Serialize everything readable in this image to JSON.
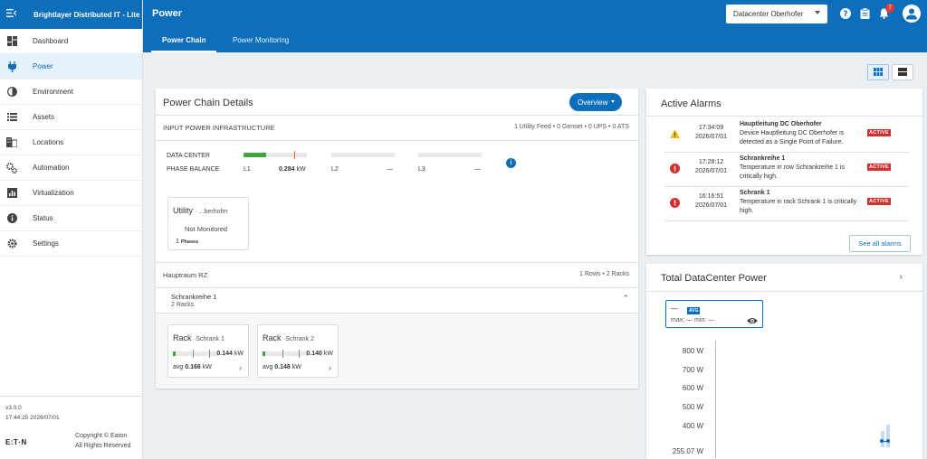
{
  "app": {
    "title": "Brightlayer Distributed IT - Lite"
  },
  "nav": [
    {
      "label": "Dashboard",
      "icon": "dashboard-icon"
    },
    {
      "label": "Power",
      "icon": "power-plug-icon",
      "active": true
    },
    {
      "label": "Environment",
      "icon": "environment-icon"
    },
    {
      "label": "Assets",
      "icon": "assets-list-icon"
    },
    {
      "label": "Locations",
      "icon": "building-icon"
    },
    {
      "label": "Automation",
      "icon": "automation-gears-icon"
    },
    {
      "label": "Virtualization",
      "icon": "chart-icon"
    },
    {
      "label": "Status",
      "icon": "info-icon"
    },
    {
      "label": "Settings",
      "icon": "gear-icon"
    }
  ],
  "footer": {
    "version": "v3.0.0",
    "timestamp": "17:44:25 2026/07/01",
    "brand": "E:T·N",
    "copyright_line1": "Copyright © Eaton",
    "copyright_line2": "All Rights Reserved"
  },
  "topbar": {
    "title": "Power",
    "datacenter": "Datacenter Oberhofer",
    "notification_count": "7"
  },
  "tabs": [
    "Power Chain",
    "Power Monitoring"
  ],
  "chain": {
    "title": "Power Chain Details",
    "overview_label": "Overview",
    "infra_label": "INPUT POWER INFRASTRUCTURE",
    "infra_summary": "1 Utility Feed • 0 Genset • 0 UPS • 0 ATS",
    "dc_label": "DATA CENTER",
    "pb_label": "PHASE BALANCE",
    "phases": [
      {
        "name": "L1",
        "value": "0.284",
        "unit": "kW",
        "fill": 0.35
      },
      {
        "name": "L2",
        "value": "—",
        "unit": "",
        "fill": 0
      },
      {
        "name": "L3",
        "value": "—",
        "unit": "",
        "fill": 0
      }
    ],
    "utility": {
      "title": "Utility",
      "name": "· ...berhofer",
      "status": "Not Monitored",
      "phase_count": "1",
      "phase_label": "Phases"
    },
    "room": {
      "name": "Hauptraum RZ",
      "summary": "1 Rows • 2 Racks"
    },
    "row": {
      "name": "Schrankreihe 1",
      "racks_label": "2 Racks"
    },
    "racks": [
      {
        "title": "Rack",
        "name": "·Schrank 1",
        "value": "0.144",
        "unit": "kW",
        "avg_label": "avg",
        "avg": "0.166",
        "avg_unit": "kW",
        "fill": 0.06
      },
      {
        "title": "Rack",
        "name": "·Schrank 2",
        "value": "0.140",
        "unit": "kW",
        "avg_label": "avg",
        "avg": "0.148",
        "avg_unit": "kW",
        "fill": 0.06
      }
    ]
  },
  "alarms": {
    "title": "Active Alarms",
    "see_all": "See all alarms",
    "items": [
      {
        "time": "17:34:09",
        "date": "2026/07/01",
        "title": "Hauptleitung DC Oberhofer",
        "desc": "Device Hauptleitung DC Oberhofer is detected as a Single Point of Failure.",
        "badge": "ACTIVE",
        "severity": "warning",
        "color": "#f0c020"
      },
      {
        "time": "17:28:12",
        "date": "2026/07/01",
        "title": "Schrankreihe 1",
        "desc": "Temperature in row Schrankreihe 1 is critically high.",
        "badge": "ACTIVE",
        "severity": "critical",
        "color": "#d32f2f"
      },
      {
        "time": "16:16:51",
        "date": "2026/07/01",
        "title": "Schrank 1",
        "desc": "Temperature in rack Schrank 1 is critically high.",
        "badge": "ACTIVE",
        "severity": "critical",
        "color": "#d32f2f"
      }
    ]
  },
  "total_power": {
    "title": "Total DataCenter Power",
    "legend": {
      "dash": "—",
      "tag": "AVG",
      "stats": "max: —    min: —"
    },
    "yticks": [
      "800 W",
      "700 W",
      "600 W",
      "500 W",
      "400 W",
      "255.07 W"
    ]
  },
  "colors": {
    "brand": "#0d6fbc",
    "ok": "#3da63d",
    "critical": "#d32f2f",
    "warning": "#f0c020"
  }
}
